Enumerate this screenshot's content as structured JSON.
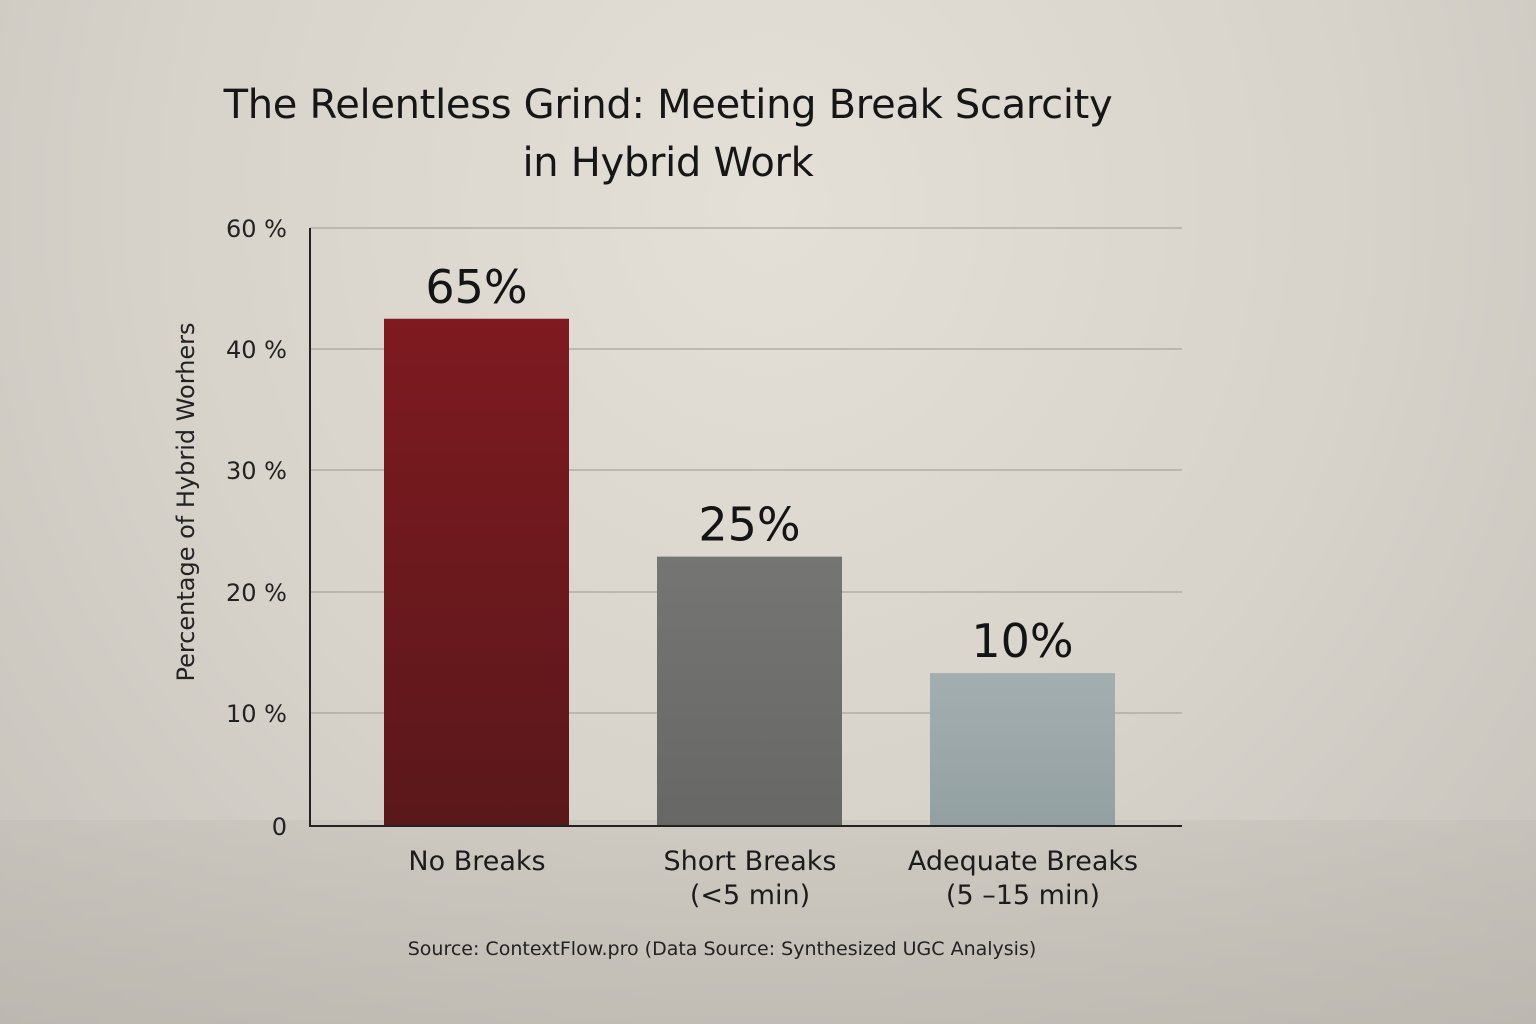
{
  "chart_data": {
    "type": "bar",
    "title_lines": [
      "The Relentless Grind: Meeting Break Scarcity",
      "in Hybrid Work"
    ],
    "ylabel": "Percentage of Hybrid Worhers",
    "categories": [
      {
        "line1": "No Breaks",
        "line2": ""
      },
      {
        "line1": "Short Breaks",
        "line2": "(<5 min)"
      },
      {
        "line1": "Adequate Breaks",
        "line2": "(5 –15 min)"
      }
    ],
    "values": [
      65,
      25,
      10
    ],
    "bar_heights_on_axis": [
      42.5,
      22.9,
      13.3
    ],
    "data_labels": [
      "65%",
      "25%",
      "10%"
    ],
    "y_ticks": [
      {
        "value": 0,
        "label": "0"
      },
      {
        "value": 10,
        "label": "10 %"
      },
      {
        "value": 20,
        "label": "20 %"
      },
      {
        "value": 30,
        "label": "30 %"
      },
      {
        "value": 40,
        "label": "40 %"
      },
      {
        "value": 60,
        "label": "60 %"
      }
    ],
    "bar_colors": [
      "#6e1a1f",
      "#6f6f6d",
      "#9daaad"
    ],
    "grid": true,
    "source": "Source: ContextFlow.pro (Data Source: Synthesized UGC Analysis)"
  }
}
